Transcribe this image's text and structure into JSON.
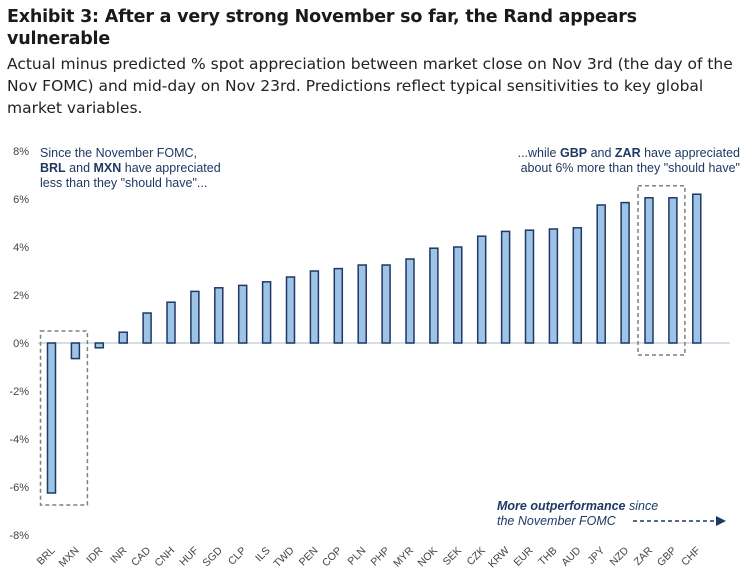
{
  "header": {
    "title": "Exhibit 3: After a very strong November so far, the Rand appears vulnerable",
    "subtitle": "Actual minus predicted % spot appreciation between market close on Nov 3rd (the day of the Nov FOMC) and mid-day on Nov 23rd. Predictions reflect typical sensitivities to key global market variables."
  },
  "annotations": {
    "left": {
      "line1": "Since the November  FOMC,",
      "brl": "BRL",
      "and": " and ",
      "mxn": "MXN",
      "rest1": " have  appreciated",
      "line3": "less than they \"should have\"..."
    },
    "right": {
      "pre": "...while ",
      "gbp": "GBP",
      "and": " and ",
      "zar": "ZAR",
      "rest1": " have appreciated",
      "line2": "about 6% more than they \"should have\""
    },
    "bottom": {
      "bold": "More outperformance",
      "rest": " since",
      "line2": "the November FOMC"
    }
  },
  "colors": {
    "bar_fill": "#9dc3e6",
    "bar_stroke": "#1f3864",
    "annotation_text": "#1f3864",
    "axis_text": "#444444",
    "zero_line": "#c8d4e3",
    "highlight_box": "#7f7f7f"
  },
  "chart_data": {
    "type": "bar",
    "categories": [
      "BRL",
      "MXN",
      "IDR",
      "INR",
      "CAD",
      "CNH",
      "HUF",
      "SGD",
      "CLP",
      "ILS",
      "TWD",
      "PEN",
      "COP",
      "PLN",
      "PHP",
      "MYR",
      "NOK",
      "SEK",
      "CZK",
      "KRW",
      "EUR",
      "THB",
      "AUD",
      "JPY",
      "NZD",
      "ZAR",
      "GBP",
      "CHF"
    ],
    "values": [
      -6.25,
      -0.65,
      -0.2,
      0.45,
      1.25,
      1.7,
      2.15,
      2.3,
      2.4,
      2.55,
      2.75,
      3.0,
      3.1,
      3.25,
      3.25,
      3.5,
      3.95,
      4.0,
      4.45,
      4.65,
      4.7,
      4.75,
      4.8,
      5.75,
      5.85,
      6.05,
      6.05,
      6.2
    ],
    "title": "",
    "xlabel": "",
    "ylabel": "",
    "ylim": [
      -8,
      8
    ],
    "yticks": [
      {
        "value": 8,
        "label": "8%"
      },
      {
        "value": 6,
        "label": "6%"
      },
      {
        "value": 4,
        "label": "4%"
      },
      {
        "value": 2,
        "label": "2%"
      },
      {
        "value": 0,
        "label": "0%"
      },
      {
        "value": -2,
        "label": "-2%"
      },
      {
        "value": -4,
        "label": "-4%"
      },
      {
        "value": -6,
        "label": "-6%"
      },
      {
        "value": -8,
        "label": "-8%"
      }
    ],
    "grid": false,
    "highlighted": [
      {
        "categories": [
          "BRL",
          "MXN"
        ]
      },
      {
        "categories": [
          "ZAR",
          "GBP"
        ]
      }
    ]
  }
}
